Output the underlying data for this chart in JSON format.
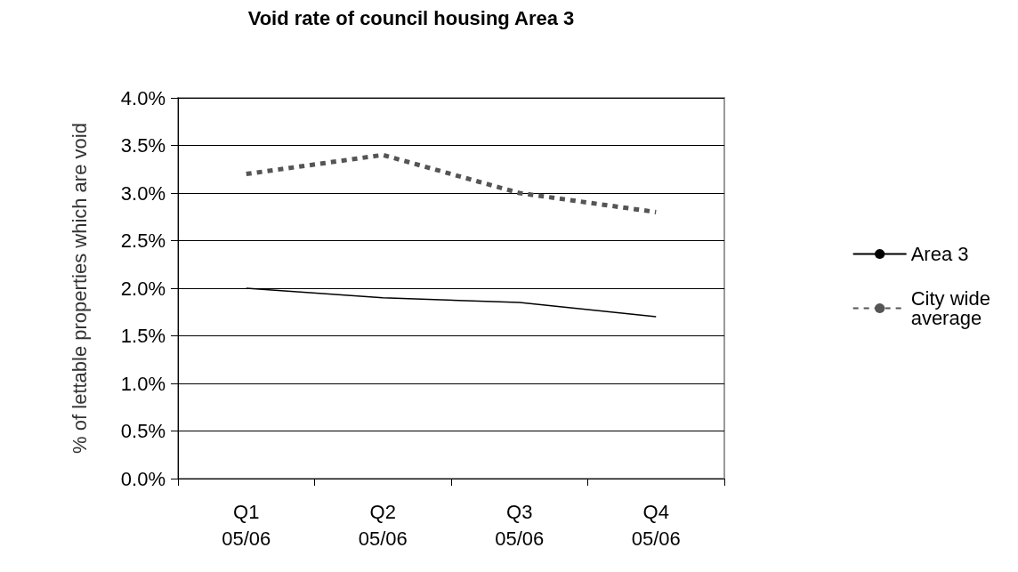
{
  "chart_data": {
    "type": "line",
    "title": "Void rate of council housing Area 3",
    "ylabel": "% of lettable properties which are void",
    "categories": [
      "Q1 05/06",
      "Q2 05/06",
      "Q3 05/06",
      "Q4 05/06"
    ],
    "series": [
      {
        "name": "Area 3",
        "color": "#000000",
        "line_style": "solid",
        "values": [
          2.0,
          1.9,
          1.85,
          1.7
        ]
      },
      {
        "name": "City wide average",
        "color": "#555555",
        "line_style": "dashed",
        "values": [
          3.2,
          3.4,
          3.0,
          2.8
        ]
      }
    ],
    "ylim": [
      0,
      4
    ],
    "yticks": [
      {
        "value": 0,
        "label": "0.0%"
      },
      {
        "value": 0.5,
        "label": "0.5%"
      },
      {
        "value": 1,
        "label": "1.0%"
      },
      {
        "value": 1.5,
        "label": "1.5%"
      },
      {
        "value": 2,
        "label": "2.0%"
      },
      {
        "value": 2.5,
        "label": "2.5%"
      },
      {
        "value": 3,
        "label": "3.0%"
      },
      {
        "value": 3.5,
        "label": "3.5%"
      },
      {
        "value": 4,
        "label": "4.0%"
      }
    ],
    "grid": "y",
    "legend": "right",
    "marker": "none"
  }
}
